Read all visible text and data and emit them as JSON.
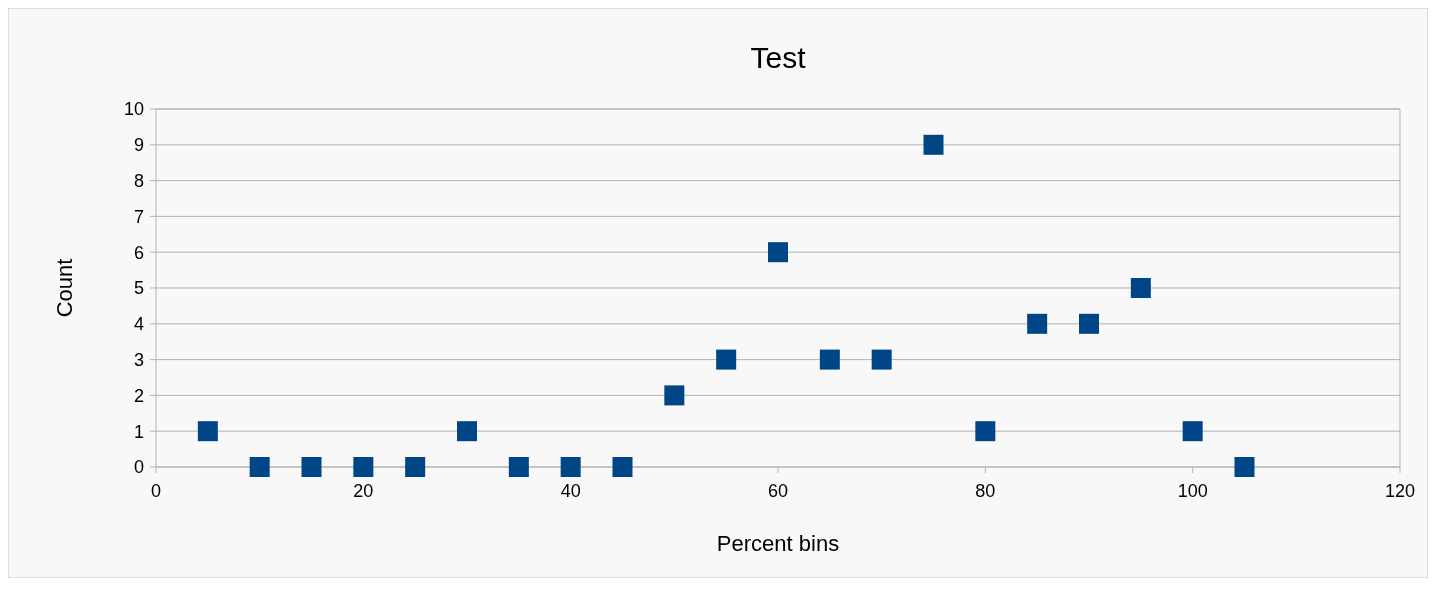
{
  "chart_data": {
    "type": "scatter",
    "title": "Test",
    "xlabel": "Percent bins",
    "ylabel": "Count",
    "x": [
      5,
      10,
      15,
      20,
      25,
      30,
      35,
      40,
      45,
      50,
      55,
      60,
      65,
      70,
      75,
      80,
      85,
      90,
      95,
      100,
      105
    ],
    "series": [
      {
        "color": "#004586",
        "values": [
          1,
          0,
          0,
          0,
          0,
          1,
          0,
          0,
          0,
          2,
          3,
          6,
          3,
          3,
          9,
          1,
          4,
          4,
          5,
          1,
          0
        ]
      }
    ],
    "xlim": [
      0,
      120
    ],
    "xticks": [
      0,
      20,
      40,
      60,
      80,
      100,
      120
    ],
    "ylim": [
      0,
      10
    ],
    "yticks": [
      0,
      1,
      2,
      3,
      4,
      5,
      6,
      7,
      8,
      9,
      10
    ],
    "grid": "y",
    "marker": "square"
  }
}
